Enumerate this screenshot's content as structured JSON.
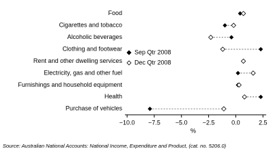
{
  "chart_data": {
    "type": "dot",
    "categories": [
      "Food",
      "Cigarettes and tobacco",
      "Alcoholic beverages",
      "Clothing and footwear",
      "Rent and other dwelling services",
      "Electricity, gas and other fuel",
      "Furnishings and household equipment",
      "Health",
      "Purchase of vehicles"
    ],
    "series": [
      {
        "name": "Sep Qtr 2008",
        "color": "#000000",
        "marker": "filled",
        "values": [
          0.4,
          -1.0,
          -0.4,
          2.3,
          0.7,
          0.2,
          0.2,
          2.3,
          -7.9
        ]
      },
      {
        "name": "Dec Qtr 2008",
        "color": "#000000",
        "marker": "hollow",
        "values": [
          0.7,
          -0.2,
          -2.3,
          -1.2,
          0.7,
          1.6,
          0.3,
          0.8,
          -1.1
        ]
      }
    ],
    "xlim": [
      -10.2,
      2.8
    ],
    "xticks": [
      {
        "value": -10,
        "label": "−10.0"
      },
      {
        "value": -7.5,
        "label": "−7.5"
      },
      {
        "value": -5,
        "label": "−5.0"
      },
      {
        "value": -2.5,
        "label": "−2.5"
      },
      {
        "value": 0,
        "label": "0.0"
      },
      2.5
    ],
    "xlabel": "%",
    "source": "Source: Australian National Accounts: National Income, Expenditure and Product, (cat. no. 5206.0)"
  }
}
